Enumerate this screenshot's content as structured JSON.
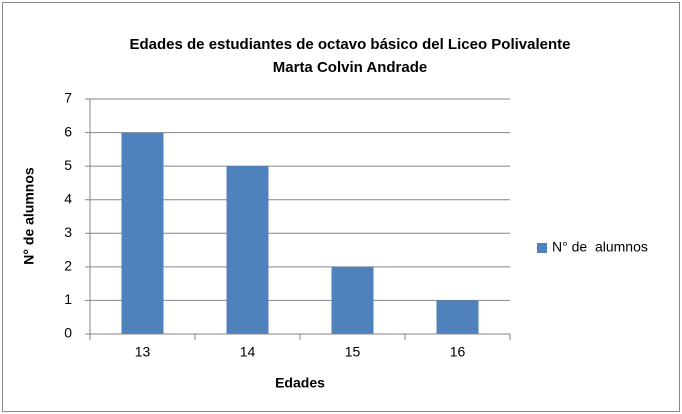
{
  "chart_data": {
    "type": "bar",
    "title": [
      "Edades de estudiantes de octavo básico del Liceo Polivalente",
      "Marta Colvin Andrade"
    ],
    "x_label": "Edades",
    "y_label": "N° de alumnos",
    "categories": [
      "13",
      "14",
      "15",
      "16"
    ],
    "series": [
      {
        "name": "N° de  alumnos",
        "color": "#4f81bd",
        "values": [
          6,
          5,
          2,
          1
        ]
      }
    ],
    "ylim": [
      0,
      7
    ],
    "yticks": [
      0,
      1,
      2,
      3,
      4,
      5,
      6,
      7
    ],
    "grid": true,
    "legend": "right"
  }
}
